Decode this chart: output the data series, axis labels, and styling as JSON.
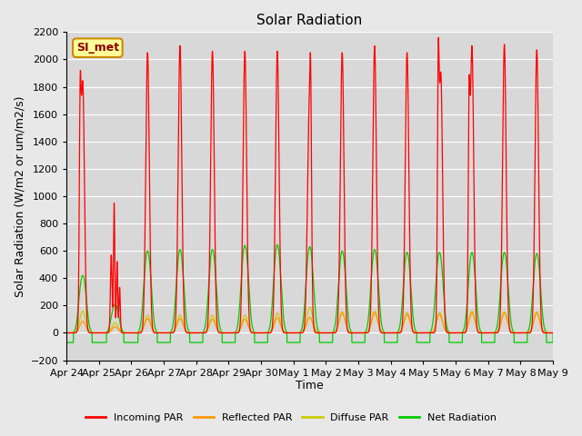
{
  "title": "Solar Radiation",
  "xlabel": "Time",
  "ylabel": "Solar Radiation (W/m2 or um/m2/s)",
  "ylim": [
    -200,
    2200
  ],
  "n_days": 15,
  "tick_labels": [
    "Apr 24",
    "Apr 25",
    "Apr 26",
    "Apr 27",
    "Apr 28",
    "Apr 29",
    "Apr 30",
    "May 1",
    "May 2",
    "May 3",
    "May 4",
    "May 5",
    "May 6",
    "May 7",
    "May 8",
    "May 9"
  ],
  "legend_entries": [
    "Incoming PAR",
    "Reflected PAR",
    "Diffuse PAR",
    "Net Radiation"
  ],
  "colors": {
    "incoming": "#ff0000",
    "reflected": "#ff9900",
    "diffuse": "#cccc00",
    "net": "#00cc00",
    "background": "#e8e8e8",
    "plot_bg": "#d8d8d8",
    "grid": "#ffffff",
    "annotation_bg": "#ffff99",
    "annotation_border": "#cc8800",
    "annotation_text": "#8b0000"
  },
  "annotation": "SI_met",
  "title_fontsize": 11,
  "label_fontsize": 9,
  "tick_fontsize": 8,
  "legend_fontsize": 8,
  "incoming_peaks": [
    1920,
    950,
    2050,
    2100,
    2060,
    2060,
    2060,
    2050,
    2050,
    2100,
    2050,
    2160,
    2100,
    2110,
    2070
  ],
  "incoming_widths": [
    0.055,
    0.055,
    0.055,
    0.055,
    0.055,
    0.055,
    0.055,
    0.055,
    0.055,
    0.055,
    0.055,
    0.055,
    0.055,
    0.055,
    0.055
  ],
  "net_peaks": [
    420,
    210,
    600,
    610,
    610,
    640,
    645,
    630,
    600,
    610,
    590,
    590,
    590,
    590,
    580
  ],
  "net_widths": [
    0.08,
    0.08,
    0.08,
    0.08,
    0.08,
    0.08,
    0.08,
    0.08,
    0.08,
    0.08,
    0.08,
    0.08,
    0.08,
    0.08,
    0.08
  ],
  "diffuse_peaks": [
    160,
    75,
    130,
    130,
    130,
    130,
    145,
    190,
    155,
    160,
    150,
    150,
    160,
    155,
    155
  ],
  "diffuse_widths": [
    0.09,
    0.09,
    0.09,
    0.09,
    0.09,
    0.09,
    0.09,
    0.09,
    0.09,
    0.09,
    0.09,
    0.09,
    0.09,
    0.09,
    0.09
  ],
  "reflected_peaks": [
    85,
    45,
    105,
    105,
    100,
    100,
    110,
    115,
    145,
    145,
    135,
    135,
    145,
    145,
    145
  ],
  "reflected_widths": [
    0.09,
    0.09,
    0.09,
    0.09,
    0.09,
    0.09,
    0.09,
    0.09,
    0.09,
    0.09,
    0.09,
    0.09,
    0.09,
    0.09,
    0.09
  ],
  "net_night": -70,
  "points_per_day": 500
}
